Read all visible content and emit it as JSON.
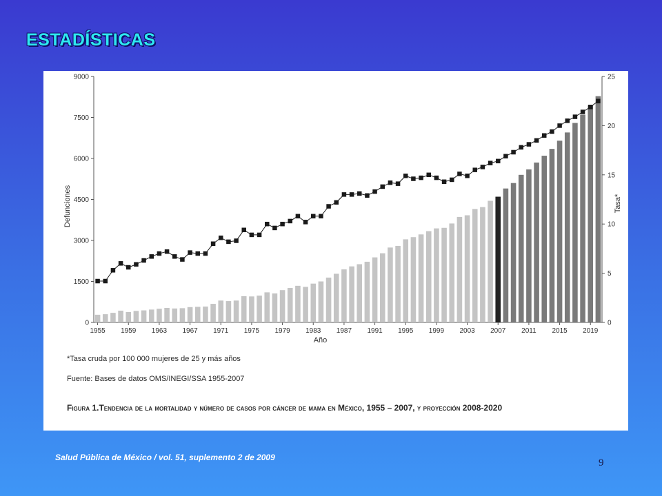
{
  "slide": {
    "title": "ESTADÍSTICAS",
    "citation": "Salud Pública de México / vol. 51, suplemento 2 de 2009",
    "page_number": "9"
  },
  "figure": {
    "note_rate": "*Tasa cruda por 100 000 mujeres de 25 y más años",
    "source": "Fuente: Bases de datos OMS/INEGI/SSA 1955-2007",
    "caption": "Figura 1.Tendencia de la mortalidad y número de casos por cáncer de mama en México, 1955 – 2007, y proyección 2008-2020"
  },
  "chart_data": {
    "type": "bar",
    "xlabel": "Año",
    "ylabel": "Defunciones",
    "y2label": "Tasa*",
    "ylim": [
      0,
      9000
    ],
    "y2lim": [
      0,
      25
    ],
    "yticks": [
      0,
      1500,
      3000,
      4500,
      6000,
      7500,
      9000
    ],
    "y2ticks": [
      0,
      5,
      10,
      15,
      20,
      25
    ],
    "xticks": [
      "1955",
      "1959",
      "1963",
      "1967",
      "1971",
      "1975",
      "1979",
      "1983",
      "1987",
      "1991",
      "1995",
      "1999",
      "2003",
      "2007",
      "2011",
      "2015",
      "2019"
    ],
    "grid": false,
    "colors": {
      "observed": "#c4c4c4",
      "highlight": "#222222",
      "projected": "#7a7a7a",
      "rate_line": "#1a1a1a"
    },
    "x": [
      1955,
      1956,
      1957,
      1958,
      1959,
      1960,
      1961,
      1962,
      1963,
      1964,
      1965,
      1966,
      1967,
      1968,
      1969,
      1970,
      1971,
      1972,
      1973,
      1974,
      1975,
      1976,
      1977,
      1978,
      1979,
      1980,
      1981,
      1982,
      1983,
      1984,
      1985,
      1986,
      1987,
      1988,
      1989,
      1990,
      1991,
      1992,
      1993,
      1994,
      1995,
      1996,
      1997,
      1998,
      1999,
      2000,
      2001,
      2002,
      2003,
      2004,
      2005,
      2006,
      2007,
      2008,
      2009,
      2010,
      2011,
      2012,
      2013,
      2014,
      2015,
      2016,
      2017,
      2018,
      2019,
      2020
    ],
    "series": [
      {
        "name": "Defunciones",
        "kind": "bar",
        "values": [
          280,
          300,
          350,
          430,
          380,
          420,
          440,
          470,
          500,
          530,
          510,
          520,
          560,
          570,
          580,
          680,
          800,
          780,
          800,
          960,
          950,
          980,
          1100,
          1060,
          1180,
          1260,
          1340,
          1300,
          1420,
          1500,
          1640,
          1780,
          1940,
          2050,
          2130,
          2220,
          2380,
          2530,
          2740,
          2800,
          3040,
          3120,
          3220,
          3340,
          3440,
          3460,
          3620,
          3860,
          3920,
          4150,
          4220,
          4450,
          4600,
          4900,
          5100,
          5400,
          5600,
          5850,
          6100,
          6350,
          6650,
          6950,
          7300,
          7600,
          7950,
          8280
        ]
      },
      {
        "name": "Tasa",
        "kind": "line",
        "values": [
          4.2,
          4.2,
          5.3,
          6.0,
          5.6,
          5.9,
          6.3,
          6.7,
          7.0,
          7.2,
          6.7,
          6.4,
          7.1,
          7.0,
          7.0,
          8.0,
          8.6,
          8.2,
          8.3,
          9.4,
          8.9,
          8.9,
          10.0,
          9.6,
          10.0,
          10.3,
          10.8,
          10.2,
          10.8,
          10.8,
          11.8,
          12.2,
          13.0,
          13.0,
          13.1,
          12.9,
          13.3,
          13.8,
          14.2,
          14.1,
          14.9,
          14.6,
          14.7,
          15.0,
          14.7,
          14.3,
          14.5,
          15.1,
          14.9,
          15.5,
          15.8,
          16.2,
          16.4,
          16.9,
          17.3,
          17.8,
          18.1,
          18.5,
          19.0,
          19.4,
          20.0,
          20.5,
          20.9,
          21.4,
          21.9,
          22.5
        ]
      }
    ]
  }
}
